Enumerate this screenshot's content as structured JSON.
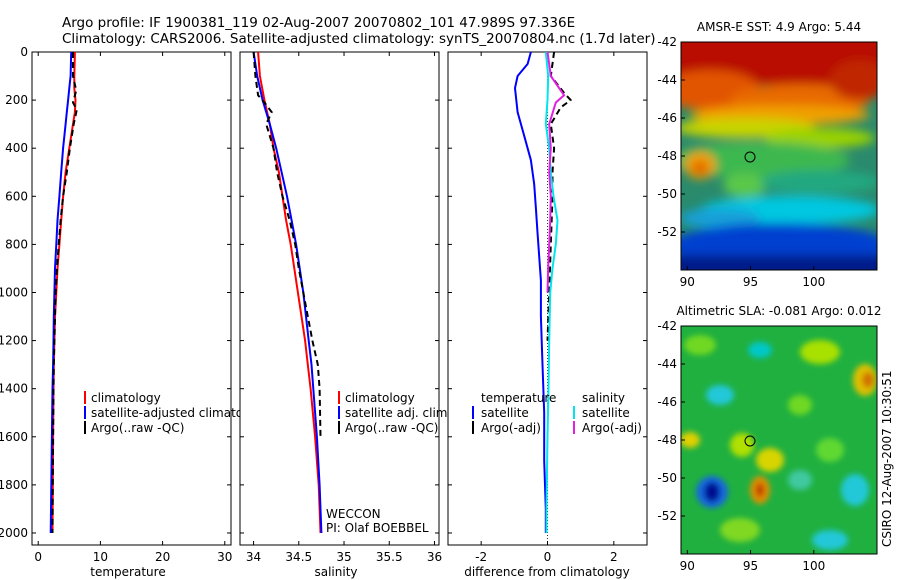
{
  "title_line1": "Argo profile: IF 1900381_119 02-Aug-2007 20070802_101 47.989S 97.336E",
  "title_line2": "Climatology: CARS2006. Satellite-adjusted climatology: synTS_20070804.nc (1.7d later)",
  "colors": {
    "climatology": "#ff0000",
    "satellite": "#0000ff",
    "argo": "#000000",
    "salinity_satellite": "#00e5ee",
    "salinity_argo": "#e020e0"
  },
  "chart_data": [
    {
      "type": "line",
      "name": "temperature-profile",
      "xlabel": "temperature",
      "xlim": [
        -1,
        31
      ],
      "ylim": [
        2050,
        0
      ],
      "xticks": [
        0,
        10,
        20,
        30
      ],
      "yticks": [
        0,
        200,
        400,
        600,
        800,
        1000,
        1200,
        1400,
        1600,
        1800,
        2000
      ],
      "legend": [
        "climatology",
        "satellite-adjusted climatology",
        "Argo(..raw -QC)"
      ],
      "series": [
        {
          "name": "climatology",
          "color": "#ff0000",
          "x": [
            5.9,
            5.8,
            5.8,
            6.0,
            5.9,
            5.6,
            5.0,
            4.4,
            4.0,
            3.7,
            3.4,
            3.1,
            2.9,
            2.7,
            2.6,
            2.5,
            2.45,
            2.4,
            2.35,
            2.3
          ],
          "y": [
            0,
            100,
            150,
            200,
            250,
            300,
            400,
            500,
            600,
            700,
            800,
            900,
            1000,
            1100,
            1200,
            1300,
            1400,
            1600,
            1800,
            2000
          ]
        },
        {
          "name": "satellite-adjusted climatology",
          "color": "#0000ff",
          "x": [
            5.3,
            5.2,
            5.0,
            4.8,
            4.6,
            4.4,
            4.0,
            3.7,
            3.4,
            3.1,
            2.9,
            2.7,
            2.6,
            2.5,
            2.45,
            2.4,
            2.3,
            2.2,
            2.1,
            2.0
          ],
          "y": [
            0,
            100,
            150,
            200,
            250,
            300,
            400,
            500,
            600,
            700,
            800,
            900,
            1000,
            1100,
            1200,
            1300,
            1400,
            1600,
            1800,
            2000
          ]
        },
        {
          "name": "Argo(..raw -QC)",
          "color": "#000000",
          "x": [
            5.6,
            5.6,
            6.1,
            5.6,
            6.2,
            5.7,
            5.1,
            4.6,
            4.0,
            3.6,
            3.3,
            3.0,
            2.8,
            2.7,
            2.6,
            2.5,
            2.45,
            2.4,
            2.35,
            2.3
          ],
          "y": [
            0,
            100,
            160,
            210,
            240,
            300,
            400,
            500,
            600,
            700,
            800,
            900,
            1000,
            1100,
            1200,
            1300,
            1400,
            1600,
            1800,
            2000
          ]
        }
      ]
    },
    {
      "type": "line",
      "name": "salinity-profile",
      "xlabel": "salinity",
      "xlim": [
        33.85,
        36.05
      ],
      "ylim": [
        2050,
        0
      ],
      "xticks": [
        34,
        34.5,
        35,
        35.5,
        36
      ],
      "legend": [
        "climatology",
        "satellite adj. clim.",
        "Argo(..raw -QC)"
      ],
      "annotations": [
        "WECCON",
        "PI: Olaf BOEBBEL"
      ],
      "series": [
        {
          "name": "climatology",
          "color": "#ff0000",
          "x": [
            34.05,
            34.07,
            34.12,
            34.18,
            34.22,
            34.28,
            34.32,
            34.36,
            34.41,
            34.45,
            34.49,
            34.53,
            34.57,
            34.6,
            34.63,
            34.68,
            34.72,
            34.74
          ],
          "y": [
            0,
            100,
            200,
            300,
            400,
            500,
            600,
            700,
            800,
            900,
            1000,
            1100,
            1200,
            1300,
            1400,
            1600,
            1800,
            2000
          ]
        },
        {
          "name": "satellite adj. clim.",
          "color": "#0000ff",
          "x": [
            34.0,
            34.04,
            34.1,
            34.18,
            34.25,
            34.31,
            34.37,
            34.42,
            34.47,
            34.51,
            34.55,
            34.58,
            34.61,
            34.64,
            34.66,
            34.7,
            34.73,
            34.75
          ],
          "y": [
            0,
            100,
            200,
            300,
            400,
            500,
            600,
            700,
            800,
            900,
            1000,
            1100,
            1200,
            1300,
            1400,
            1600,
            1800,
            2000
          ]
        },
        {
          "name": "Argo(..raw -QC)",
          "color": "#000000",
          "x": [
            34.0,
            34.02,
            34.05,
            34.12,
            34.2,
            34.14,
            34.22,
            34.26,
            34.32,
            34.4,
            34.46,
            34.5,
            34.55,
            34.6,
            34.65,
            34.71,
            34.73,
            34.74
          ],
          "y": [
            0,
            100,
            180,
            210,
            250,
            300,
            400,
            500,
            600,
            700,
            800,
            900,
            1000,
            1100,
            1200,
            1300,
            1400,
            1600
          ]
        }
      ]
    },
    {
      "type": "line",
      "name": "difference-profile",
      "xlabel": "difference from climatology",
      "xlim": [
        -3,
        3
      ],
      "ylim": [
        2050,
        0
      ],
      "xticks": [
        -2,
        0,
        2
      ],
      "legend_temperature_title": "temperature",
      "legend_salinity_title": "salinity",
      "legend": [
        "satellite",
        "Argo(-adj)"
      ],
      "series": [
        {
          "name": "temperature satellite",
          "color": "#0000ff",
          "x": [
            -0.5,
            -0.6,
            -0.9,
            -0.98,
            -0.9,
            -0.7,
            -0.5,
            -0.4,
            -0.35,
            -0.3,
            -0.25,
            -0.2,
            -0.2,
            -0.15,
            -0.1,
            -0.1,
            -0.05,
            -0.05
          ],
          "y": [
            0,
            50,
            100,
            150,
            250,
            350,
            450,
            550,
            650,
            750,
            850,
            950,
            1100,
            1300,
            1500,
            1700,
            1900,
            2000
          ]
        },
        {
          "name": "temperature Argo(-adj)",
          "color": "#000000",
          "x": [
            0.2,
            0.1,
            0.5,
            0.7,
            0.4,
            0.1,
            0.2,
            0.15,
            0.15,
            0.1,
            0.05,
            0.0
          ],
          "y": [
            0,
            100,
            170,
            200,
            230,
            300,
            400,
            500,
            600,
            800,
            1000,
            1200
          ]
        },
        {
          "name": "salinity satellite",
          "color": "#00e5ee",
          "x": [
            -0.05,
            0.02,
            0.0,
            -0.05,
            0.05,
            0.1,
            0.18,
            0.3,
            0.25,
            0.15,
            0.08,
            0.05,
            0.03,
            0.0,
            -0.02,
            -0.03,
            -0.03
          ],
          "y": [
            0,
            100,
            200,
            300,
            400,
            500,
            600,
            700,
            800,
            900,
            1000,
            1200,
            1400,
            1600,
            1800,
            1900,
            2000
          ]
        },
        {
          "name": "salinity Argo(-adj)",
          "color": "#e020e0",
          "x": [
            0.0,
            0.1,
            0.5,
            0.25,
            0.05,
            0.1,
            0.05,
            0.1,
            0.08,
            0.05,
            0.02,
            0.0
          ],
          "y": [
            0,
            100,
            180,
            210,
            300,
            400,
            500,
            600,
            700,
            800,
            900,
            1000
          ]
        }
      ]
    },
    {
      "type": "heatmap",
      "name": "amsre-sst-map",
      "title": "AMSR-E SST: 4.9 Argo: 5.44",
      "xlim": [
        89.5,
        105
      ],
      "ylim": [
        -54,
        -42
      ],
      "xticks": [
        90,
        95,
        100
      ],
      "yticks": [
        -42,
        -44,
        -46,
        -48,
        -50,
        -52
      ],
      "argo_position": {
        "lon": 97.336,
        "lat": -47.989
      }
    },
    {
      "type": "heatmap",
      "name": "altimetric-sla-map",
      "title": "Altimetric SLA: -0.081 Argo: 0.012",
      "xlim": [
        89.5,
        105
      ],
      "ylim": [
        -54,
        -42
      ],
      "xticks": [
        90,
        95,
        100
      ],
      "yticks": [
        -42,
        -44,
        -46,
        -48,
        -50,
        -52
      ],
      "argo_position": {
        "lon": 97.336,
        "lat": -47.989
      }
    }
  ],
  "side_label": "CSIRO 12-Aug-2007 10:30:51"
}
